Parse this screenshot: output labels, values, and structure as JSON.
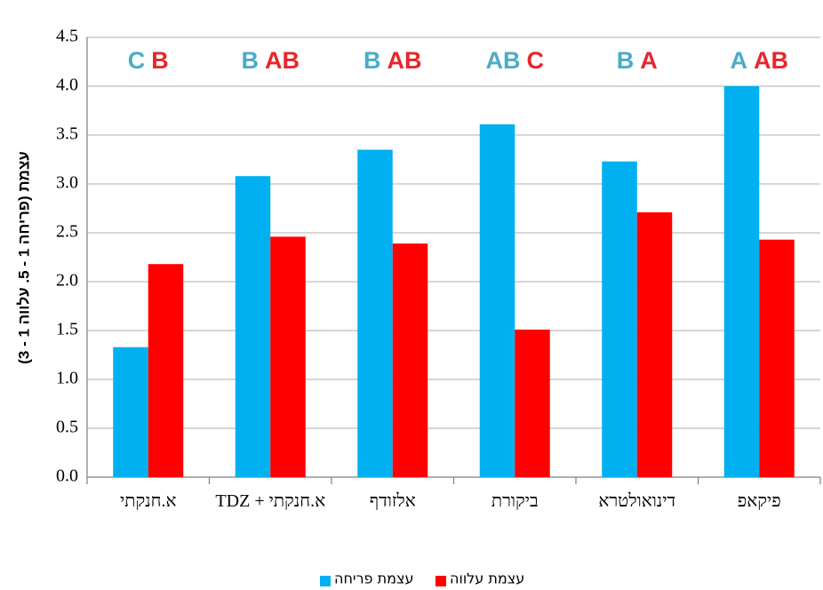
{
  "chart_data": {
    "type": "bar",
    "ylabel": "עצמת (פריחה 1 - 5. עלווה 1 - 3)",
    "categories": [
      "א.חנקתי",
      "א.חנקתי + TDZ",
      "אלזודף",
      "ביקורת",
      "דינואולטרא",
      "פיקאפ"
    ],
    "series": [
      {
        "name": "עצמת פריחה",
        "color": "#00b0f0",
        "values": [
          1.33,
          3.08,
          3.35,
          3.61,
          3.23,
          4.0
        ],
        "letters": [
          "C",
          "B",
          "B",
          "AB",
          "B",
          "A"
        ],
        "letter_color": "#4bacc6"
      },
      {
        "name": "עצמת עלווה",
        "color": "#ff0000",
        "values": [
          2.18,
          2.46,
          2.39,
          1.51,
          2.71,
          2.43
        ],
        "letters": [
          "B",
          "AB",
          "AB",
          "C",
          "A",
          "AB"
        ],
        "letter_color": "#e8262b"
      }
    ],
    "ylim": [
      0,
      4.5
    ],
    "yticks": [
      {
        "value": 0,
        "label": "0.0"
      },
      0.5,
      {
        "value": 1,
        "label": "1.0"
      },
      1.5,
      {
        "value": 2,
        "label": "2.0"
      },
      2.5,
      {
        "value": 3,
        "label": "3.0"
      },
      3.5,
      {
        "value": 4,
        "label": "4.0"
      },
      4.5
    ],
    "grid": true
  }
}
